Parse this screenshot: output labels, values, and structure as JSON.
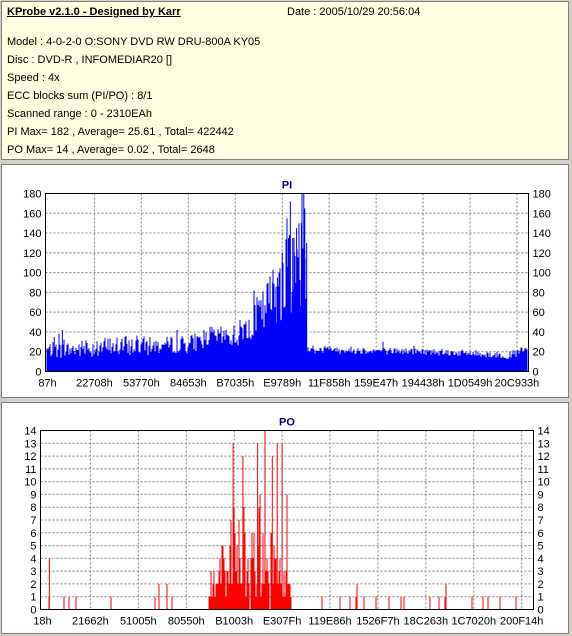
{
  "info": {
    "title": "KProbe v2.1.0 - Designed by Karr",
    "date": "Date : 2005/10/29 20:56:04",
    "model": "Model : 4-0-2-0 O:SONY    DVD RW DRU-800A  KY05",
    "disc": "Disc : DVD-R , INFOMEDIAR20 []",
    "speed": "Speed : 4x",
    "ecc": "ECC blocks sum (PI/PO) : 8/1",
    "range": "Scanned range : 0 - 2310EAh",
    "pi_summary": "PI Max= 182 , Average= 25.61 , Total= 422442",
    "po_summary": "PO Max= 14 , Average= 0.02 , Total= 2648"
  },
  "chart_data": [
    {
      "type": "bar",
      "title": "PI",
      "color": "#0000ff",
      "ylim": [
        0,
        180
      ],
      "yticks": [
        0,
        20,
        40,
        60,
        80,
        100,
        120,
        140,
        160,
        180
      ],
      "xticks": [
        "87h",
        "22708h",
        "53770h",
        "84653h",
        "B7035h",
        "E9789h",
        "11F858h",
        "159E47h",
        "194438h",
        "1D0549h",
        "20C933h"
      ],
      "grid": true,
      "profile": [
        [
          0,
          22,
          10
        ],
        [
          0.02,
          22,
          12
        ],
        [
          0.05,
          22,
          12
        ],
        [
          0.1,
          24,
          15
        ],
        [
          0.16,
          26,
          15
        ],
        [
          0.2,
          26,
          14
        ],
        [
          0.23,
          26,
          12
        ],
        [
          0.25,
          27,
          12
        ],
        [
          0.3,
          28,
          14
        ],
        [
          0.34,
          36,
          14
        ],
        [
          0.37,
          35,
          15
        ],
        [
          0.4,
          38,
          20
        ],
        [
          0.42,
          48,
          25
        ],
        [
          0.45,
          60,
          35
        ],
        [
          0.48,
          85,
          50
        ],
        [
          0.5,
          95,
          60
        ],
        [
          0.52,
          105,
          60
        ],
        [
          0.5399,
          105,
          60
        ],
        [
          0.54,
          22,
          5
        ],
        [
          0.58,
          22,
          6
        ],
        [
          0.7,
          21,
          5
        ],
        [
          0.8,
          20,
          5
        ],
        [
          0.9,
          18,
          5
        ],
        [
          0.96,
          16,
          5
        ],
        [
          0.99,
          20,
          8
        ],
        [
          1.0,
          22,
          8
        ]
      ],
      "peaks": [
        [
          0.015,
          35
        ],
        [
          0.025,
          38
        ],
        [
          0.032,
          42
        ],
        [
          0.45,
          60
        ],
        [
          0.47,
          90
        ],
        [
          0.48,
          95
        ],
        [
          0.49,
          120
        ],
        [
          0.5,
          130
        ],
        [
          0.503,
          135
        ],
        [
          0.505,
          138
        ],
        [
          0.5,
          155
        ],
        [
          0.507,
          172
        ],
        [
          0.512,
          135
        ],
        [
          0.515,
          120
        ],
        [
          0.52,
          145
        ],
        [
          0.525,
          150
        ],
        [
          0.53,
          150
        ],
        [
          0.535,
          180
        ],
        [
          0.537,
          165
        ],
        [
          0.541,
          130
        ]
      ]
    },
    {
      "type": "bar",
      "title": "PO",
      "color": "#ff0000",
      "ylim": [
        0,
        14
      ],
      "yticks": [
        0,
        1,
        2,
        3,
        4,
        5,
        6,
        7,
        8,
        9,
        10,
        11,
        12,
        13,
        14
      ],
      "xticks": [
        "18h",
        "21662h",
        "51005h",
        "80550h",
        "B1003h",
        "E307Fh",
        "119E86h",
        "1526F7h",
        "18C263h",
        "1C7020h",
        "200F14h"
      ],
      "grid": true,
      "dense_region": [
        0.34,
        0.51
      ],
      "peaks": [
        [
          0.015,
          4
        ],
        [
          0.39,
          13
        ],
        [
          0.41,
          12
        ],
        [
          0.44,
          13
        ],
        [
          0.455,
          14
        ],
        [
          0.47,
          12
        ],
        [
          0.48,
          13
        ],
        [
          0.49,
          13
        ],
        [
          0.5,
          9
        ],
        [
          0.445,
          9
        ]
      ]
    }
  ]
}
